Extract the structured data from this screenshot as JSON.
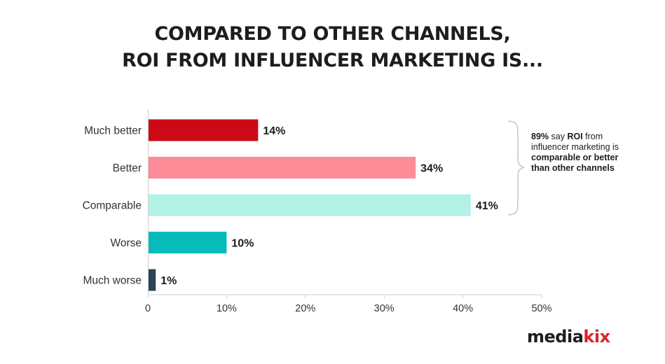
{
  "title_lines": [
    "COMPARED TO OTHER CHANNELS,",
    "ROI FROM INFLUENCER MARKETING IS..."
  ],
  "annotation": {
    "p1": "89%",
    "p2": " say ",
    "p3": "ROI",
    "p4": " from influencer marketing is ",
    "p5": "comparable or better than other channels"
  },
  "logo": {
    "part1": "media",
    "part2": "kix"
  },
  "chart_data": {
    "type": "bar",
    "orientation": "horizontal",
    "categories": [
      "Much better",
      "Better",
      "Comparable",
      "Worse",
      "Much worse"
    ],
    "values": [
      14,
      34,
      41,
      10,
      1
    ],
    "value_labels": [
      "14%",
      "34%",
      "41%",
      "10%",
      "1%"
    ],
    "colors": [
      "#cc0a17",
      "#fe8b98",
      "#b1f1e6",
      "#07bbbb",
      "#2a4553"
    ],
    "xlim": [
      0,
      50
    ],
    "xticks": [
      0,
      10,
      20,
      30,
      40,
      50
    ],
    "xtick_labels": [
      "0",
      "10%",
      "20%",
      "30%",
      "40%",
      "50%"
    ],
    "grid": false
  }
}
